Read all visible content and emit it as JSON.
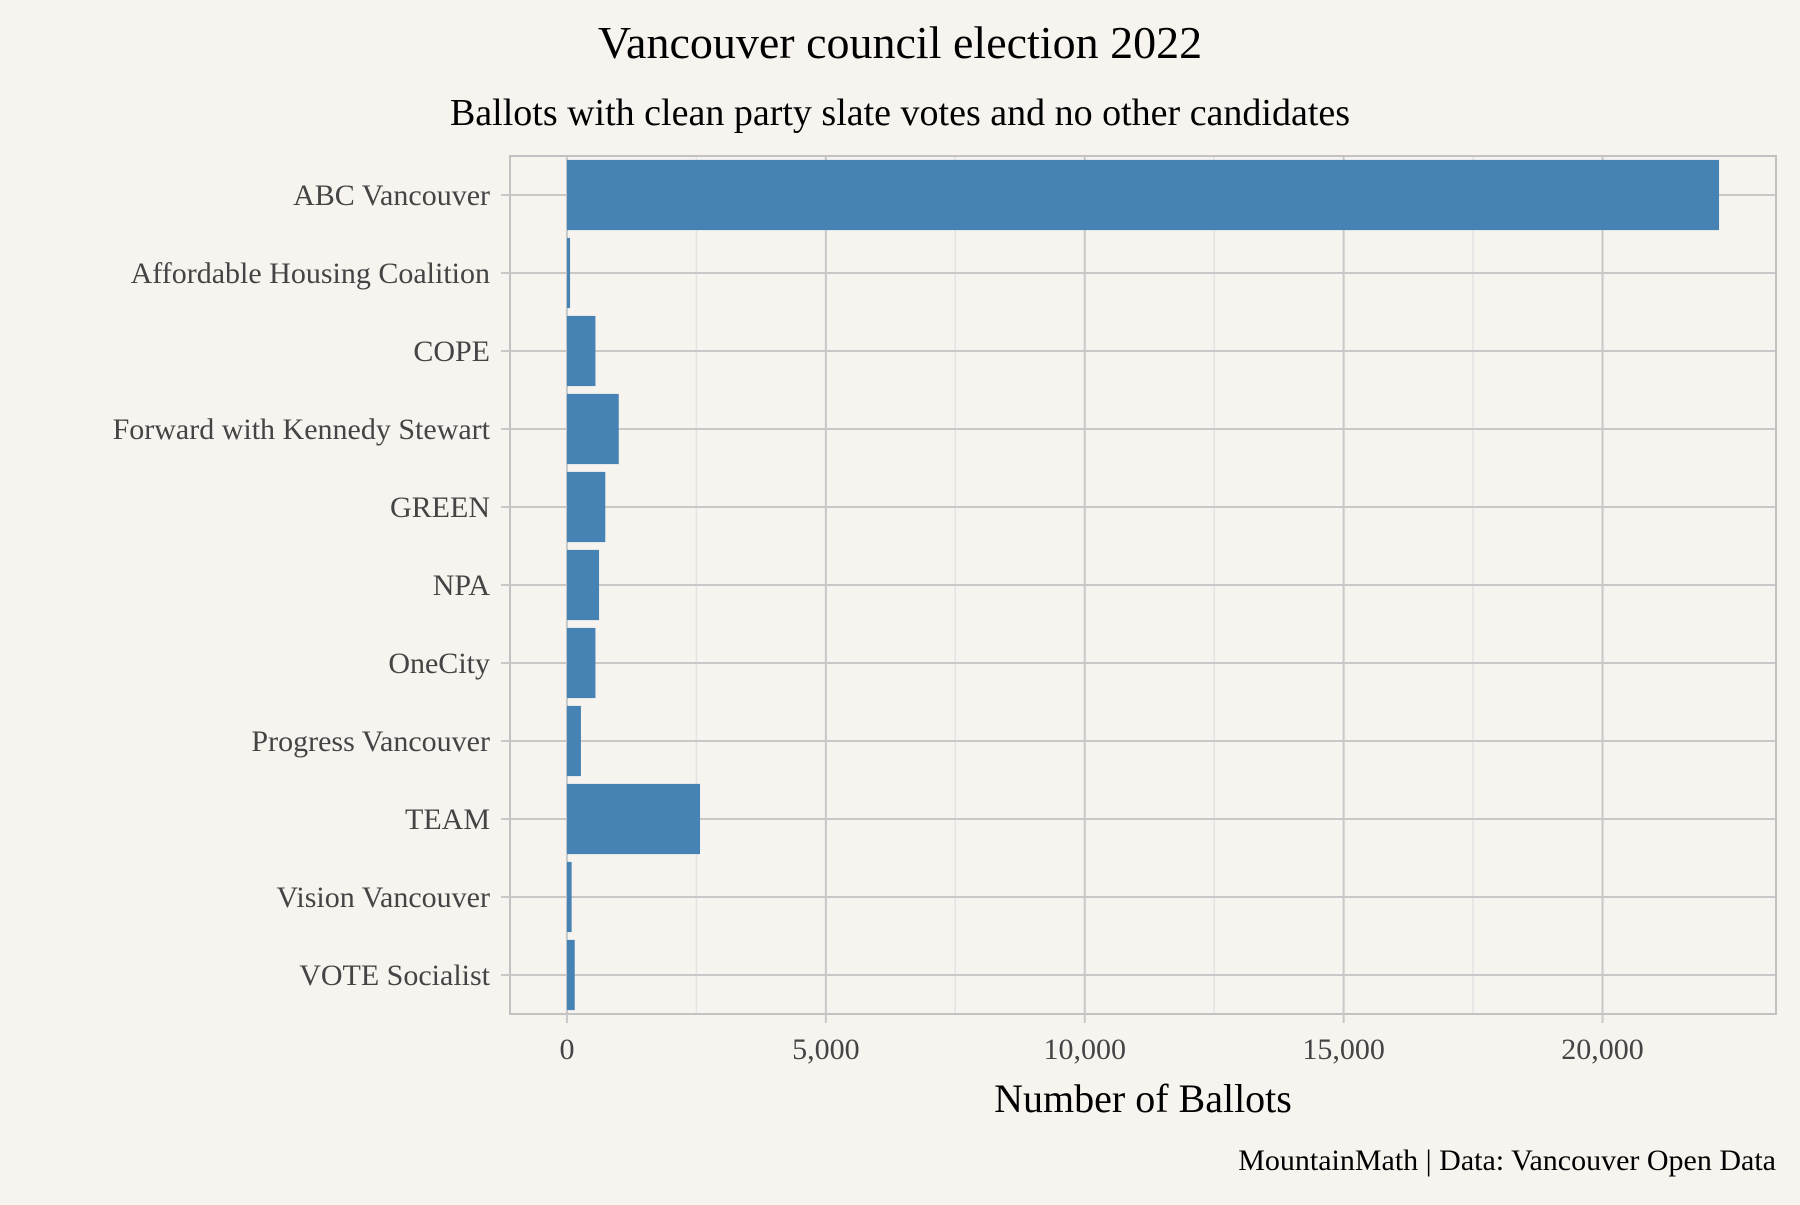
{
  "chart_data": {
    "type": "bar",
    "orientation": "horizontal",
    "title": "Vancouver council election 2022",
    "subtitle": "Ballots with clean party slate votes and no other candidates",
    "xlabel": "Number of Ballots",
    "ylabel": "",
    "caption": "MountainMath | Data: Vancouver Open Data",
    "categories": [
      "ABC Vancouver",
      "Affordable Housing Coalition",
      "COPE",
      "Forward with Kennedy Stewart",
      "GREEN",
      "NPA",
      "OneCity",
      "Progress Vancouver",
      "TEAM",
      "Vision Vancouver",
      "VOTE Socialist"
    ],
    "values": [
      22250,
      60,
      550,
      1000,
      740,
      620,
      550,
      270,
      2570,
      90,
      150
    ],
    "xlim": [
      -1100,
      23350
    ],
    "x_ticks": [
      0,
      5000,
      10000,
      15000,
      20000
    ],
    "x_tick_labels": [
      "0",
      "5,000",
      "10,000",
      "15,000",
      "20,000"
    ],
    "grid": true,
    "legend": "none",
    "colors": {
      "bar": "#4682b4",
      "background": "#f7f4f0",
      "grid_major": "#c8c8c8",
      "grid_minor": "#e3e3e3",
      "panel_border": "#c2c2c2"
    }
  }
}
